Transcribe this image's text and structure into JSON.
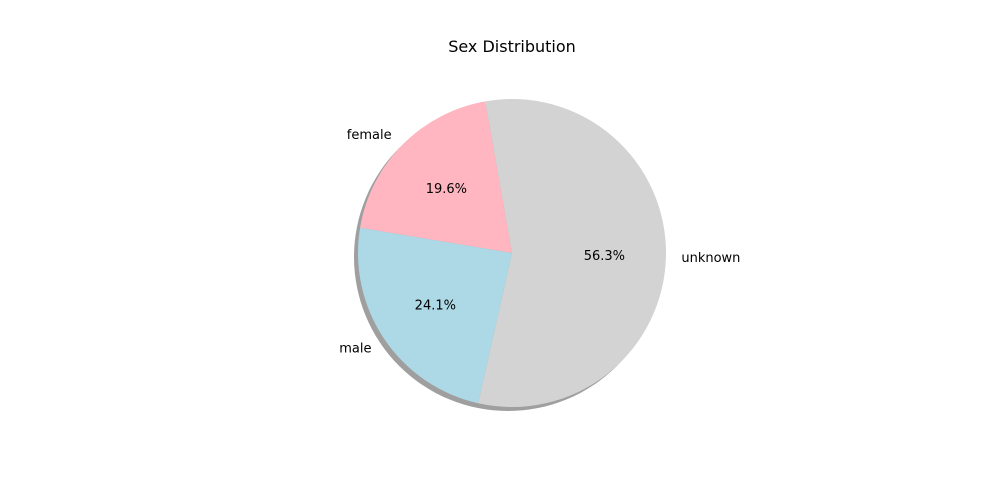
{
  "chart_data": {
    "type": "pie",
    "title": "Sex Distribution",
    "start_angle_deg": 100,
    "counterclock": true,
    "shadow": true,
    "slices": [
      {
        "label": "female",
        "value": 19.6,
        "pct_label": "19.6%",
        "color": "#ffb6c1"
      },
      {
        "label": "male",
        "value": 24.1,
        "pct_label": "24.1%",
        "color": "#add8e6"
      },
      {
        "label": "unknown",
        "value": 56.3,
        "pct_label": "56.3%",
        "color": "#d3d3d3"
      }
    ]
  }
}
